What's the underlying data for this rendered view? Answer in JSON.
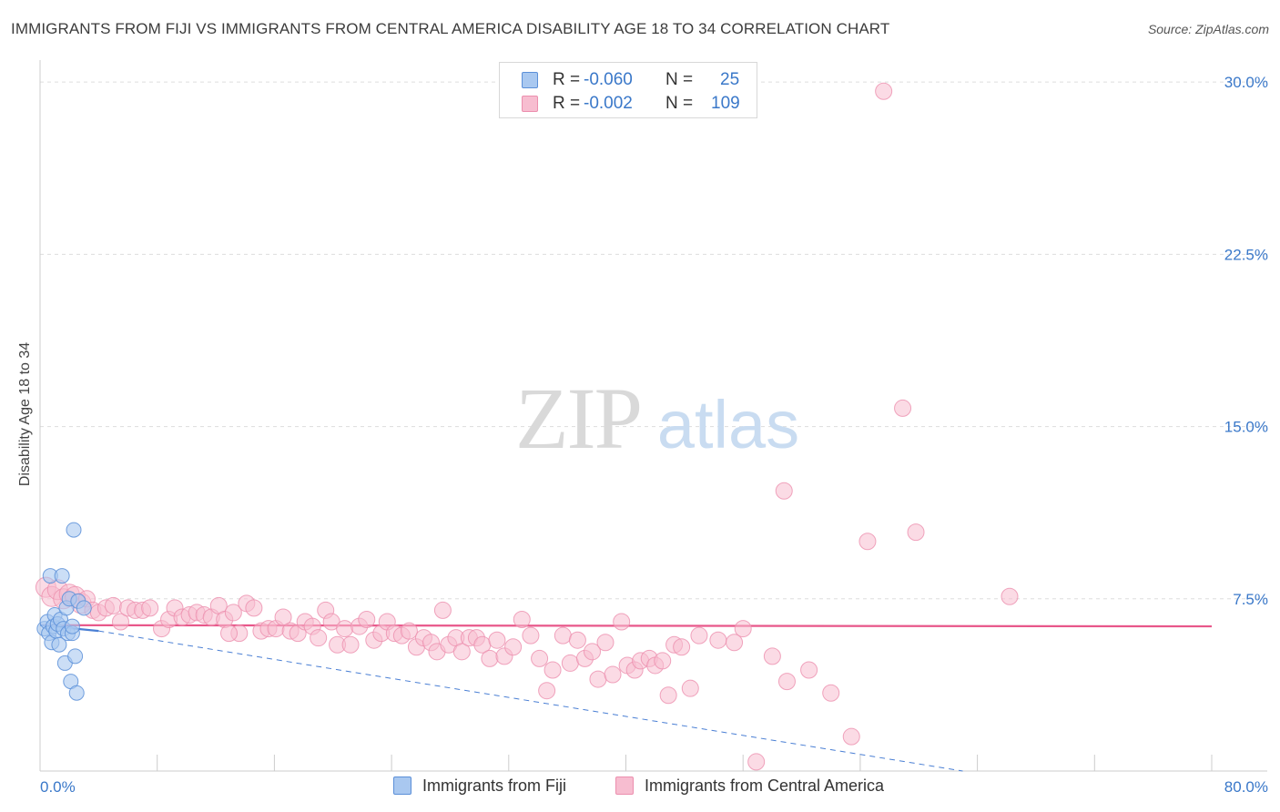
{
  "header": {
    "title": "IMMIGRANTS FROM FIJI VS IMMIGRANTS FROM CENTRAL AMERICA DISABILITY AGE 18 TO 34 CORRELATION CHART",
    "source": "Source: ZipAtlas.com"
  },
  "watermark": {
    "zip": "ZIP",
    "atlas": "atlas"
  },
  "legend_top": {
    "rows": [
      {
        "r_label": "R =",
        "r_value": "-0.060",
        "n_label": "N =",
        "n_value": "25"
      },
      {
        "r_label": "R =",
        "r_value": "-0.002",
        "n_label": "N =",
        "n_value": "109"
      }
    ]
  },
  "legend_bottom": {
    "items": [
      {
        "label": "Immigrants from Fiji"
      },
      {
        "label": "Immigrants from Central America"
      }
    ]
  },
  "colors": {
    "fiji_fill": "#a9c8f0",
    "fiji_stroke": "#5b8fd8",
    "ca_fill": "#f7bdd0",
    "ca_stroke": "#ec8fae",
    "ca_trend": "#e8578a",
    "fiji_trend": "#4a7fd4",
    "axis_text": "#3a78c9",
    "grid": "#dddddd"
  },
  "chart_data": {
    "type": "scatter",
    "title": "IMMIGRANTS FROM FIJI VS IMMIGRANTS FROM CENTRAL AMERICA DISABILITY AGE 18 TO 34 CORRELATION CHART",
    "xlabel": "",
    "ylabel": "Disability Age 18 to 34",
    "xlim": [
      0,
      80
    ],
    "ylim": [
      0,
      30.8
    ],
    "x_tick_labels": [
      "0.0%",
      "80.0%"
    ],
    "y_ticks": [
      7.5,
      15.0,
      22.5,
      30.0
    ],
    "y_tick_labels": [
      "7.5%",
      "15.0%",
      "22.5%",
      "30.0%"
    ],
    "grid": true,
    "legend_position": "top-center",
    "series": [
      {
        "name": "Immigrants from Fiji",
        "r": -0.06,
        "n": 25,
        "trend": {
          "x": [
            0,
            4
          ],
          "y": [
            6.35,
            6.1
          ],
          "extended_x": [
            4,
            63
          ],
          "extended_y": [
            6.1,
            0.0
          ]
        },
        "points": [
          {
            "x": 0.3,
            "y": 6.2
          },
          {
            "x": 0.5,
            "y": 6.5
          },
          {
            "x": 0.6,
            "y": 6.0
          },
          {
            "x": 0.7,
            "y": 8.5
          },
          {
            "x": 0.8,
            "y": 5.6
          },
          {
            "x": 0.9,
            "y": 6.3
          },
          {
            "x": 1.0,
            "y": 6.8
          },
          {
            "x": 1.1,
            "y": 6.1
          },
          {
            "x": 1.2,
            "y": 6.4
          },
          {
            "x": 1.3,
            "y": 5.5
          },
          {
            "x": 1.4,
            "y": 6.6
          },
          {
            "x": 1.5,
            "y": 8.5
          },
          {
            "x": 1.6,
            "y": 6.2
          },
          {
            "x": 1.7,
            "y": 4.7
          },
          {
            "x": 1.8,
            "y": 7.1
          },
          {
            "x": 1.9,
            "y": 6.0
          },
          {
            "x": 2.0,
            "y": 7.5
          },
          {
            "x": 2.1,
            "y": 3.9
          },
          {
            "x": 2.2,
            "y": 6.0
          },
          {
            "x": 2.3,
            "y": 10.5
          },
          {
            "x": 2.4,
            "y": 5.0
          },
          {
            "x": 2.6,
            "y": 7.4
          },
          {
            "x": 3.0,
            "y": 7.1
          },
          {
            "x": 2.2,
            "y": 6.3
          },
          {
            "x": 2.5,
            "y": 3.4
          }
        ]
      },
      {
        "name": "Immigrants from Central America",
        "r": -0.002,
        "n": 109,
        "trend": {
          "x": [
            0,
            80
          ],
          "y": [
            6.35,
            6.3
          ]
        },
        "points": [
          {
            "x": 0.4,
            "y": 8.0
          },
          {
            "x": 0.8,
            "y": 7.6
          },
          {
            "x": 1.2,
            "y": 7.9
          },
          {
            "x": 1.6,
            "y": 7.5
          },
          {
            "x": 2.0,
            "y": 7.7
          },
          {
            "x": 2.4,
            "y": 7.6
          },
          {
            "x": 2.8,
            "y": 7.3
          },
          {
            "x": 3.2,
            "y": 7.5
          },
          {
            "x": 3.6,
            "y": 7.0
          },
          {
            "x": 4.0,
            "y": 6.9
          },
          {
            "x": 4.5,
            "y": 7.1
          },
          {
            "x": 5.0,
            "y": 7.2
          },
          {
            "x": 5.5,
            "y": 6.5
          },
          {
            "x": 6.0,
            "y": 7.1
          },
          {
            "x": 6.5,
            "y": 7.0
          },
          {
            "x": 7.0,
            "y": 7.0
          },
          {
            "x": 7.5,
            "y": 7.1
          },
          {
            "x": 8.3,
            "y": 6.2
          },
          {
            "x": 8.8,
            "y": 6.6
          },
          {
            "x": 9.2,
            "y": 7.1
          },
          {
            "x": 9.7,
            "y": 6.7
          },
          {
            "x": 10.2,
            "y": 6.8
          },
          {
            "x": 10.7,
            "y": 6.9
          },
          {
            "x": 11.2,
            "y": 6.8
          },
          {
            "x": 11.7,
            "y": 6.7
          },
          {
            "x": 12.2,
            "y": 7.2
          },
          {
            "x": 12.6,
            "y": 6.6
          },
          {
            "x": 13.2,
            "y": 6.9
          },
          {
            "x": 13.6,
            "y": 6.0
          },
          {
            "x": 14.1,
            "y": 7.3
          },
          {
            "x": 14.6,
            "y": 7.1
          },
          {
            "x": 15.1,
            "y": 6.1
          },
          {
            "x": 15.6,
            "y": 6.2
          },
          {
            "x": 16.1,
            "y": 6.2
          },
          {
            "x": 16.6,
            "y": 6.7
          },
          {
            "x": 17.1,
            "y": 6.1
          },
          {
            "x": 17.6,
            "y": 6.0
          },
          {
            "x": 18.1,
            "y": 6.5
          },
          {
            "x": 18.6,
            "y": 6.3
          },
          {
            "x": 19.0,
            "y": 5.8
          },
          {
            "x": 19.5,
            "y": 7.0
          },
          {
            "x": 19.9,
            "y": 6.5
          },
          {
            "x": 20.3,
            "y": 5.5
          },
          {
            "x": 20.8,
            "y": 6.2
          },
          {
            "x": 21.2,
            "y": 5.5
          },
          {
            "x": 21.8,
            "y": 6.3
          },
          {
            "x": 22.3,
            "y": 6.6
          },
          {
            "x": 22.8,
            "y": 5.7
          },
          {
            "x": 23.3,
            "y": 6.0
          },
          {
            "x": 23.7,
            "y": 6.5
          },
          {
            "x": 24.2,
            "y": 6.0
          },
          {
            "x": 24.7,
            "y": 5.9
          },
          {
            "x": 25.2,
            "y": 6.1
          },
          {
            "x": 25.7,
            "y": 5.4
          },
          {
            "x": 26.2,
            "y": 5.8
          },
          {
            "x": 26.7,
            "y": 5.6
          },
          {
            "x": 27.1,
            "y": 5.2
          },
          {
            "x": 27.5,
            "y": 7.0
          },
          {
            "x": 27.9,
            "y": 5.5
          },
          {
            "x": 28.4,
            "y": 5.8
          },
          {
            "x": 28.8,
            "y": 5.2
          },
          {
            "x": 29.3,
            "y": 5.8
          },
          {
            "x": 29.8,
            "y": 5.8
          },
          {
            "x": 30.2,
            "y": 5.5
          },
          {
            "x": 30.7,
            "y": 4.9
          },
          {
            "x": 31.2,
            "y": 5.7
          },
          {
            "x": 31.7,
            "y": 5.0
          },
          {
            "x": 32.3,
            "y": 5.4
          },
          {
            "x": 32.9,
            "y": 6.6
          },
          {
            "x": 33.5,
            "y": 5.9
          },
          {
            "x": 34.1,
            "y": 4.9
          },
          {
            "x": 34.6,
            "y": 3.5
          },
          {
            "x": 35.0,
            "y": 4.4
          },
          {
            "x": 35.7,
            "y": 5.9
          },
          {
            "x": 36.2,
            "y": 4.7
          },
          {
            "x": 36.7,
            "y": 5.7
          },
          {
            "x": 37.2,
            "y": 4.9
          },
          {
            "x": 37.7,
            "y": 5.2
          },
          {
            "x": 38.1,
            "y": 4.0
          },
          {
            "x": 38.6,
            "y": 5.6
          },
          {
            "x": 39.1,
            "y": 4.2
          },
          {
            "x": 39.7,
            "y": 6.5
          },
          {
            "x": 40.1,
            "y": 4.6
          },
          {
            "x": 40.6,
            "y": 4.4
          },
          {
            "x": 41.0,
            "y": 4.8
          },
          {
            "x": 41.6,
            "y": 4.9
          },
          {
            "x": 42.0,
            "y": 4.6
          },
          {
            "x": 42.5,
            "y": 4.8
          },
          {
            "x": 42.9,
            "y": 3.3
          },
          {
            "x": 43.3,
            "y": 5.5
          },
          {
            "x": 43.8,
            "y": 5.4
          },
          {
            "x": 44.4,
            "y": 3.6
          },
          {
            "x": 45.0,
            "y": 5.9
          },
          {
            "x": 46.3,
            "y": 5.7
          },
          {
            "x": 47.4,
            "y": 5.6
          },
          {
            "x": 48.0,
            "y": 6.2
          },
          {
            "x": 51.0,
            "y": 3.9
          },
          {
            "x": 52.5,
            "y": 4.4
          },
          {
            "x": 54.0,
            "y": 3.4
          },
          {
            "x": 50.8,
            "y": 12.2
          },
          {
            "x": 56.5,
            "y": 10.0
          },
          {
            "x": 59.8,
            "y": 10.4
          },
          {
            "x": 55.4,
            "y": 1.5
          },
          {
            "x": 50.0,
            "y": 5.0
          },
          {
            "x": 57.6,
            "y": 29.6
          },
          {
            "x": 58.9,
            "y": 15.8
          },
          {
            "x": 66.2,
            "y": 7.6
          },
          {
            "x": 48.9,
            "y": 0.4
          },
          {
            "x": 12.9,
            "y": 6.0
          }
        ]
      }
    ]
  }
}
